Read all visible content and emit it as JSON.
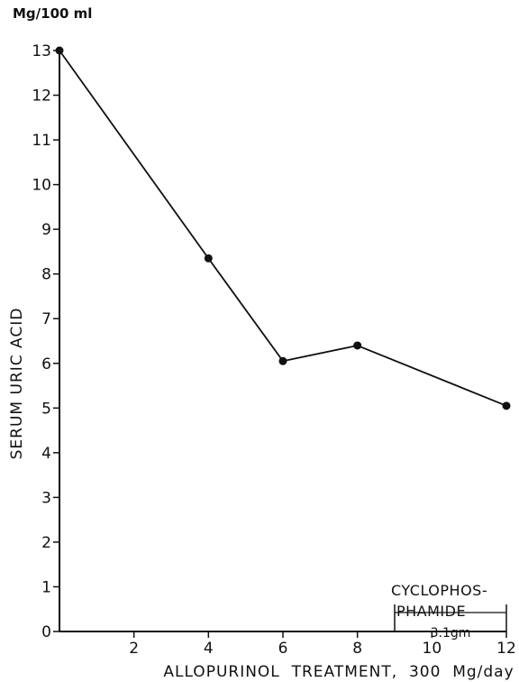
{
  "chart_data": {
    "type": "line",
    "ylabel": "SERUM URIC ACID",
    "yunit": "Mg/100 ml",
    "xlabel": "ALLOPURINOL  TREATMENT,  300  Mg/day",
    "xlim": [
      0,
      12
    ],
    "ylim": [
      0,
      13
    ],
    "x_ticks": [
      2,
      4,
      6,
      8,
      10,
      12
    ],
    "x_tick_labels": [
      "2",
      "4",
      "6",
      "8",
      "10",
      "12"
    ],
    "y_ticks": [
      0,
      1,
      2,
      3,
      4,
      5,
      6,
      7,
      8,
      9,
      10,
      11,
      12,
      13
    ],
    "y_tick_labels": [
      "0",
      "1",
      "2",
      "3",
      "4",
      "5",
      "6",
      "7",
      "8",
      "9",
      "10",
      "11",
      "12",
      "13"
    ],
    "grid": false,
    "series": [
      {
        "x": [
          0,
          4,
          6,
          8,
          12
        ],
        "y": [
          13.0,
          8.35,
          6.05,
          6.4,
          5.05
        ]
      }
    ],
    "annotation": {
      "label_line1": "CYCLOPHOS-",
      "label_line2": "PHAMIDE",
      "value": "3.1gm",
      "x_range": [
        9,
        12
      ]
    },
    "colors": {
      "line": "#111111",
      "marker": "#111111"
    }
  }
}
